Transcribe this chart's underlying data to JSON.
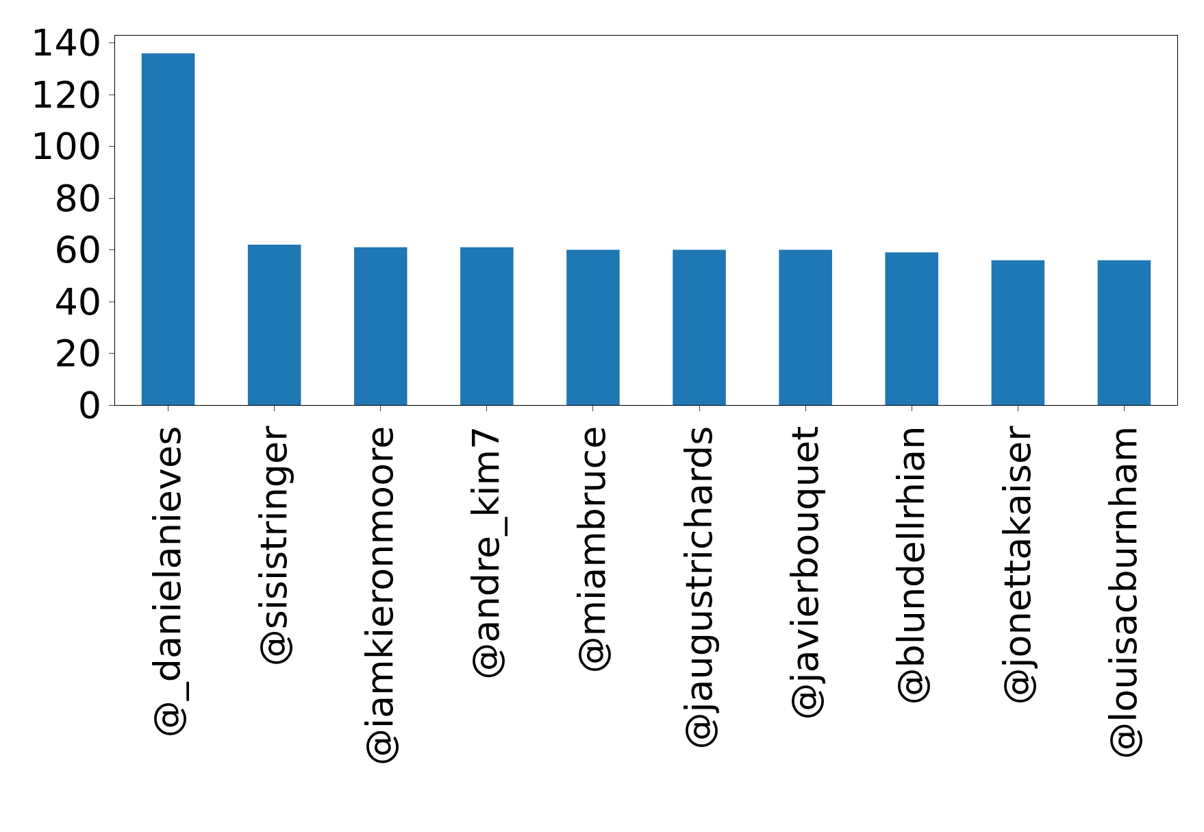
{
  "chart_data": {
    "type": "bar",
    "categories": [
      "@_danielanieves",
      "@sisistringer",
      "@iamkieronmoore",
      "@andre_kim7",
      "@miambruce",
      "@jaugustrichards",
      "@javierbouquet",
      "@blundellrhian",
      "@jonettakaiser",
      "@louisacburnham"
    ],
    "values": [
      136,
      62,
      61,
      61,
      60,
      60,
      60,
      59,
      56,
      56
    ],
    "color": "#1f77b4",
    "ylim": [
      0,
      142.8
    ],
    "yticks": [
      0,
      20,
      40,
      60,
      80,
      100,
      120,
      140
    ]
  }
}
